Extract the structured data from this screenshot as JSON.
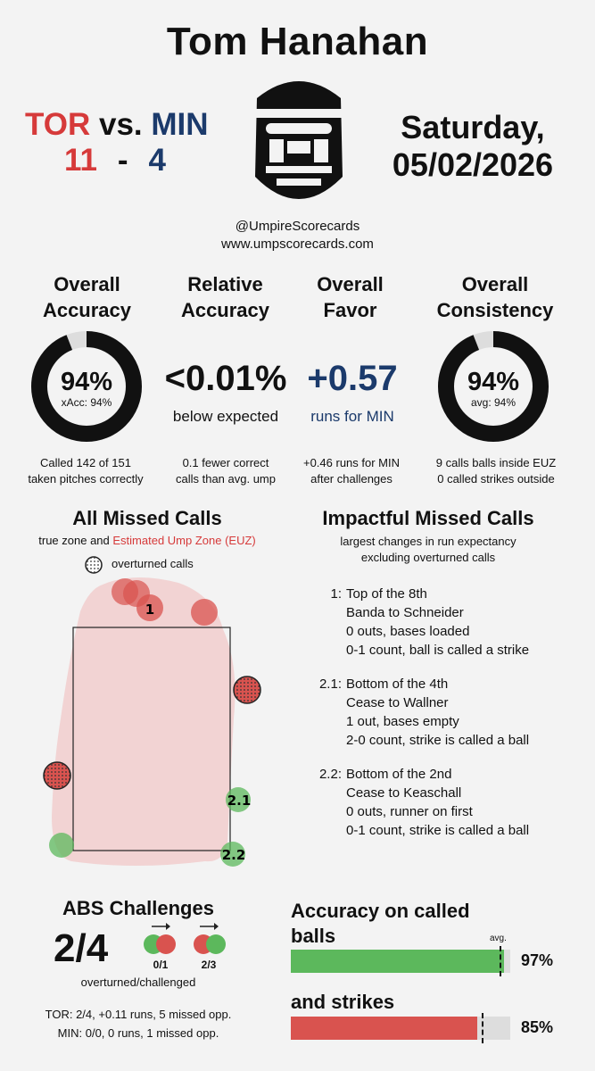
{
  "umpire_name": "Tom Hanahan",
  "game": {
    "away_team": "TOR",
    "vs": "vs.",
    "home_team": "MIN",
    "away_score": "11",
    "dash": "-",
    "home_score": "4",
    "day": "Saturday,",
    "date": "05/02/2026"
  },
  "social": {
    "handle": "@UmpireScorecards",
    "website": "www.umpscorecards.com"
  },
  "colors": {
    "tor_red": "#d63a3a",
    "min_navy": "#1b3a6b",
    "green": "#5cb85c",
    "miss_red": "#d9534f"
  },
  "overall_accuracy": {
    "title_line1": "Overall",
    "title_line2": "Accuracy",
    "value": "94%",
    "sub": "xAcc: 94%",
    "fraction": 0.94,
    "desc_line1": "Called 142 of 151",
    "desc_line2": "taken pitches correctly"
  },
  "relative_accuracy": {
    "title_line1": "Relative",
    "title_line2": "Accuracy",
    "value": "<0.01%",
    "sub": "below expected",
    "desc_line1": "0.1 fewer correct",
    "desc_line2": "calls than avg. ump"
  },
  "overall_favor": {
    "title_line1": "Overall",
    "title_line2": "Favor",
    "value": "+0.57",
    "sub": "runs for MIN",
    "desc_line1": "+0.46 runs for MIN",
    "desc_line2": "after challenges"
  },
  "overall_consistency": {
    "title_line1": "Overall",
    "title_line2": "Consistency",
    "value": "94%",
    "sub": "avg: 94%",
    "fraction": 0.94,
    "desc_line1": "9 calls balls inside EUZ",
    "desc_line2": "0 called strikes outside"
  },
  "missed_calls": {
    "title": "All Missed Calls",
    "subtitle_plain": "true zone and ",
    "subtitle_red": "Estimated Ump Zone (EUZ)",
    "legend_label": "overturned calls",
    "point_labels": [
      "1",
      "2.1",
      "2.2"
    ]
  },
  "impactful": {
    "title": "Impactful Missed Calls",
    "subtitle_line1": "largest changes in run expectancy",
    "subtitle_line2": "excluding overturned calls",
    "items": [
      {
        "num": "1:",
        "l1": "Top of the 8th",
        "l2": "Banda to Schneider",
        "l3": "0 outs, bases loaded",
        "l4": "0-1 count, ball is called a strike"
      },
      {
        "num": "2.1:",
        "l1": "Bottom of the 4th",
        "l2": "Cease to Wallner",
        "l3": "1 out, bases empty",
        "l4": "2-0 count, strike is called a ball"
      },
      {
        "num": "2.2:",
        "l1": "Bottom of the 2nd",
        "l2": "Cease to Keaschall",
        "l3": "0 outs, runner on first",
        "l4": "0-1 count, strike is called a ball"
      }
    ]
  },
  "abs": {
    "title": "ABS Challenges",
    "ratio": "2/4",
    "strike_to_ball": "0/1",
    "ball_to_strike": "2/3",
    "caption": "overturned/challenged",
    "tor_line": "TOR: 2/4, +0.11 runs, 5 missed opp.",
    "min_line": "MIN: 0/0, 0 runs, 1 missed opp."
  },
  "called_accuracy": {
    "title_line1": "Accuracy on called",
    "title_line2": "balls",
    "avg_label": "avg.",
    "balls_value": "97%",
    "balls_fraction": 0.97,
    "balls_avg_fraction": 0.95,
    "strikes_title": "and strikes",
    "strikes_value": "85%",
    "strikes_fraction": 0.85,
    "strikes_avg_fraction": 0.87
  }
}
